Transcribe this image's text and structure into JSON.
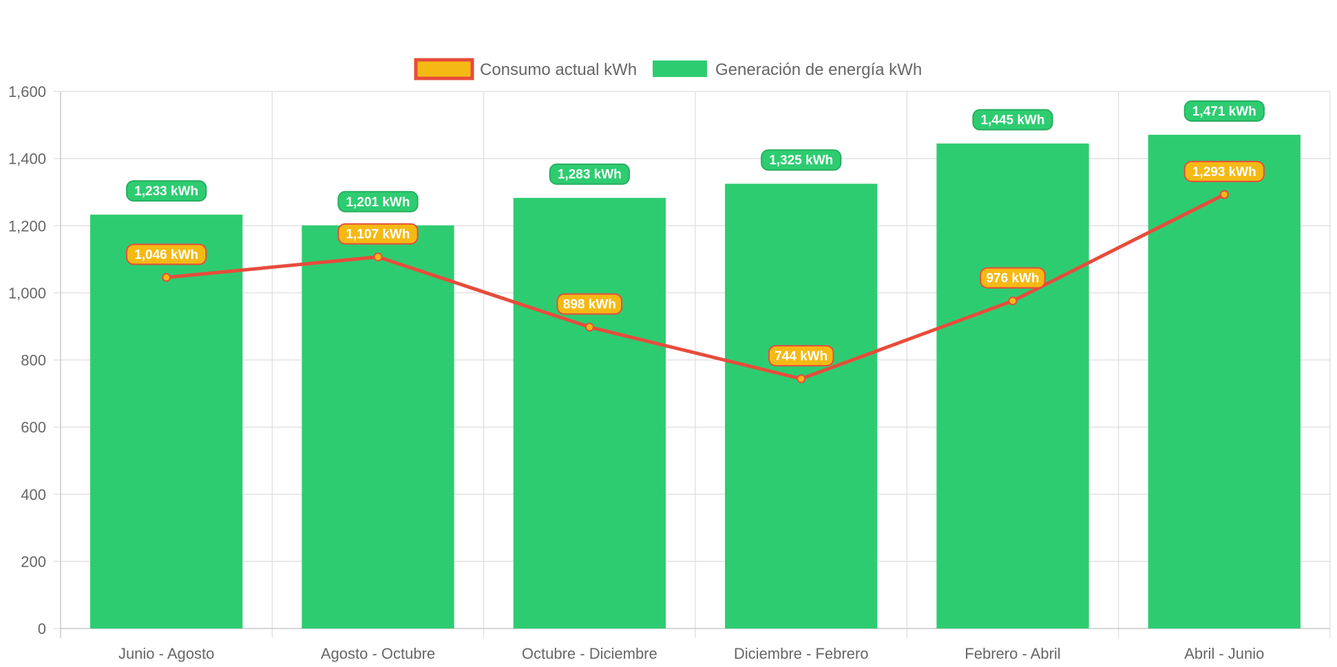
{
  "chart_data": {
    "type": "bar",
    "title": "",
    "xlabel": "",
    "ylabel": "",
    "categories": [
      "Junio - Agosto",
      "Agosto - Octubre",
      "Octubre - Diciembre",
      "Diciembre - Febrero",
      "Febrero - Abril",
      "Abril - Junio"
    ],
    "ylim": [
      0,
      1600
    ],
    "yticks": [
      "0",
      "200",
      "400",
      "600",
      "800",
      "1,000",
      "1,200",
      "1,400",
      "1,600"
    ],
    "grid": true,
    "legend_position": "top",
    "series": [
      {
        "name": "Consumo actual kWh",
        "type": "line",
        "values": [
          1046,
          1107,
          898,
          744,
          976,
          1293
        ],
        "labels": [
          "1,046 kWh",
          "1,107 kWh",
          "898 kWh",
          "744 kWh",
          "976 kWh",
          "1,293 kWh"
        ],
        "line_color": "#E74C3C",
        "fill_color": "#F5B914"
      },
      {
        "name": "Generación de energía kWh",
        "type": "bar",
        "values": [
          1233,
          1201,
          1283,
          1325,
          1445,
          1471
        ],
        "labels": [
          "1,233 kWh",
          "1,201 kWh",
          "1,283 kWh",
          "1,325 kWh",
          "1,445 kWh",
          "1,471 kWh"
        ],
        "fill_color": "#2ECC71",
        "border_color": "#27AE60"
      }
    ]
  }
}
